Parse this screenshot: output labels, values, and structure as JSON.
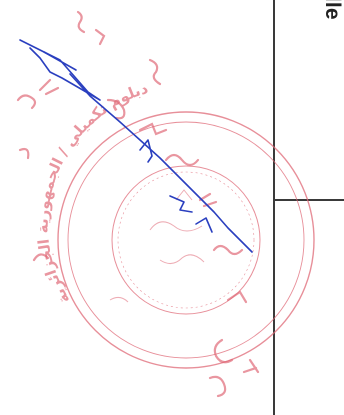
{
  "document": {
    "heading_fragment": "icielle",
    "stamp": {
      "ink_color": "#e06a78",
      "outer_text": "دبلوم تكميلي / الجمهورية الجزائرية",
      "inner_text": "ختم رسمي",
      "signature_color": "#2a3fbf"
    }
  }
}
